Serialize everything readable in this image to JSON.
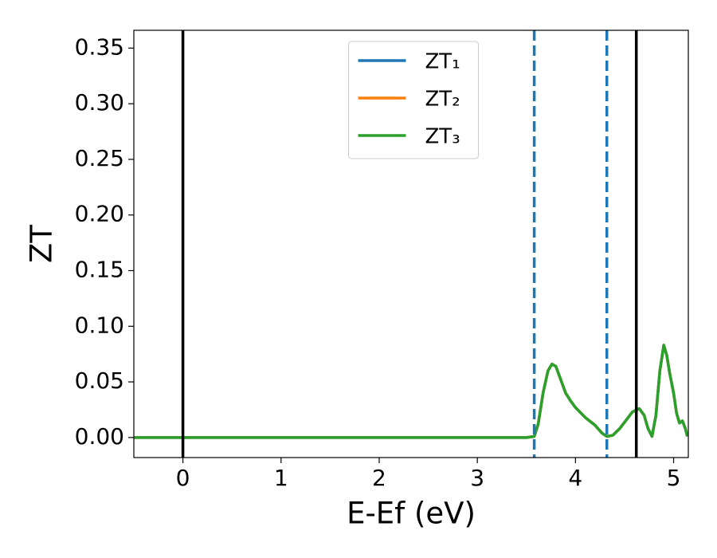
{
  "chart_data": {
    "type": "line",
    "x_label": "E-Ef (eV)",
    "y_label": "ZT",
    "x": [
      -0.5,
      3.5,
      3.58,
      3.62,
      3.67,
      3.72,
      3.76,
      3.8,
      3.85,
      3.9,
      3.95,
      4.0,
      4.1,
      4.2,
      4.27,
      4.32,
      4.38,
      4.45,
      4.52,
      4.58,
      4.65,
      4.7,
      4.74,
      4.78,
      4.82,
      4.86,
      4.9,
      4.93,
      4.96,
      5.0,
      5.03,
      5.06,
      5.09,
      5.12,
      5.14
    ],
    "series": [
      {
        "name": "ZT₁",
        "color": "#1f77b4",
        "values": [
          0,
          0,
          0.001,
          0.012,
          0.04,
          0.06,
          0.066,
          0.064,
          0.052,
          0.04,
          0.033,
          0.027,
          0.018,
          0.011,
          0.004,
          0.001,
          0.002,
          0.008,
          0.016,
          0.023,
          0.026,
          0.02,
          0.008,
          0.001,
          0.02,
          0.06,
          0.083,
          0.074,
          0.058,
          0.04,
          0.022,
          0.013,
          0.015,
          0.008,
          0.001
        ]
      },
      {
        "name": "ZT₂",
        "color": "#ff7f0e",
        "values": [
          0,
          0,
          0.001,
          0.012,
          0.04,
          0.06,
          0.066,
          0.064,
          0.052,
          0.04,
          0.033,
          0.027,
          0.018,
          0.011,
          0.004,
          0.001,
          0.002,
          0.008,
          0.016,
          0.023,
          0.026,
          0.02,
          0.008,
          0.001,
          0.02,
          0.06,
          0.083,
          0.074,
          0.058,
          0.04,
          0.022,
          0.013,
          0.015,
          0.008,
          0.001
        ]
      },
      {
        "name": "ZT₃",
        "color": "#2ca02c",
        "values": [
          0,
          0,
          0.001,
          0.012,
          0.04,
          0.06,
          0.066,
          0.064,
          0.052,
          0.04,
          0.033,
          0.027,
          0.018,
          0.011,
          0.004,
          0.001,
          0.002,
          0.008,
          0.016,
          0.023,
          0.026,
          0.02,
          0.008,
          0.001,
          0.02,
          0.06,
          0.083,
          0.074,
          0.058,
          0.04,
          0.022,
          0.013,
          0.015,
          0.008,
          0.001
        ]
      }
    ],
    "vlines": [
      {
        "x": 0,
        "color": "#000000",
        "style": "solid"
      },
      {
        "x": 3.58,
        "color": "#1f77b4",
        "style": "dashed"
      },
      {
        "x": 4.32,
        "color": "#1f77b4",
        "style": "dashed"
      },
      {
        "x": 4.62,
        "color": "#000000",
        "style": "solid"
      }
    ],
    "xlim": [
      -0.5,
      5.15
    ],
    "ylim": [
      -0.018,
      0.366
    ],
    "xticks": [
      0,
      1,
      2,
      3,
      4,
      5
    ],
    "yticks": [
      {
        "value": 0,
        "label": "0.00"
      },
      {
        "value": 0.05,
        "label": "0.05"
      },
      {
        "value": 0.1,
        "label": "0.10"
      },
      {
        "value": 0.15,
        "label": "0.15"
      },
      {
        "value": 0.2,
        "label": "0.20"
      },
      {
        "value": 0.25,
        "label": "0.25"
      },
      {
        "value": 0.3,
        "label": "0.30"
      },
      {
        "value": 0.35,
        "label": "0.35"
      }
    ],
    "legend": "upper center",
    "grid": false
  }
}
